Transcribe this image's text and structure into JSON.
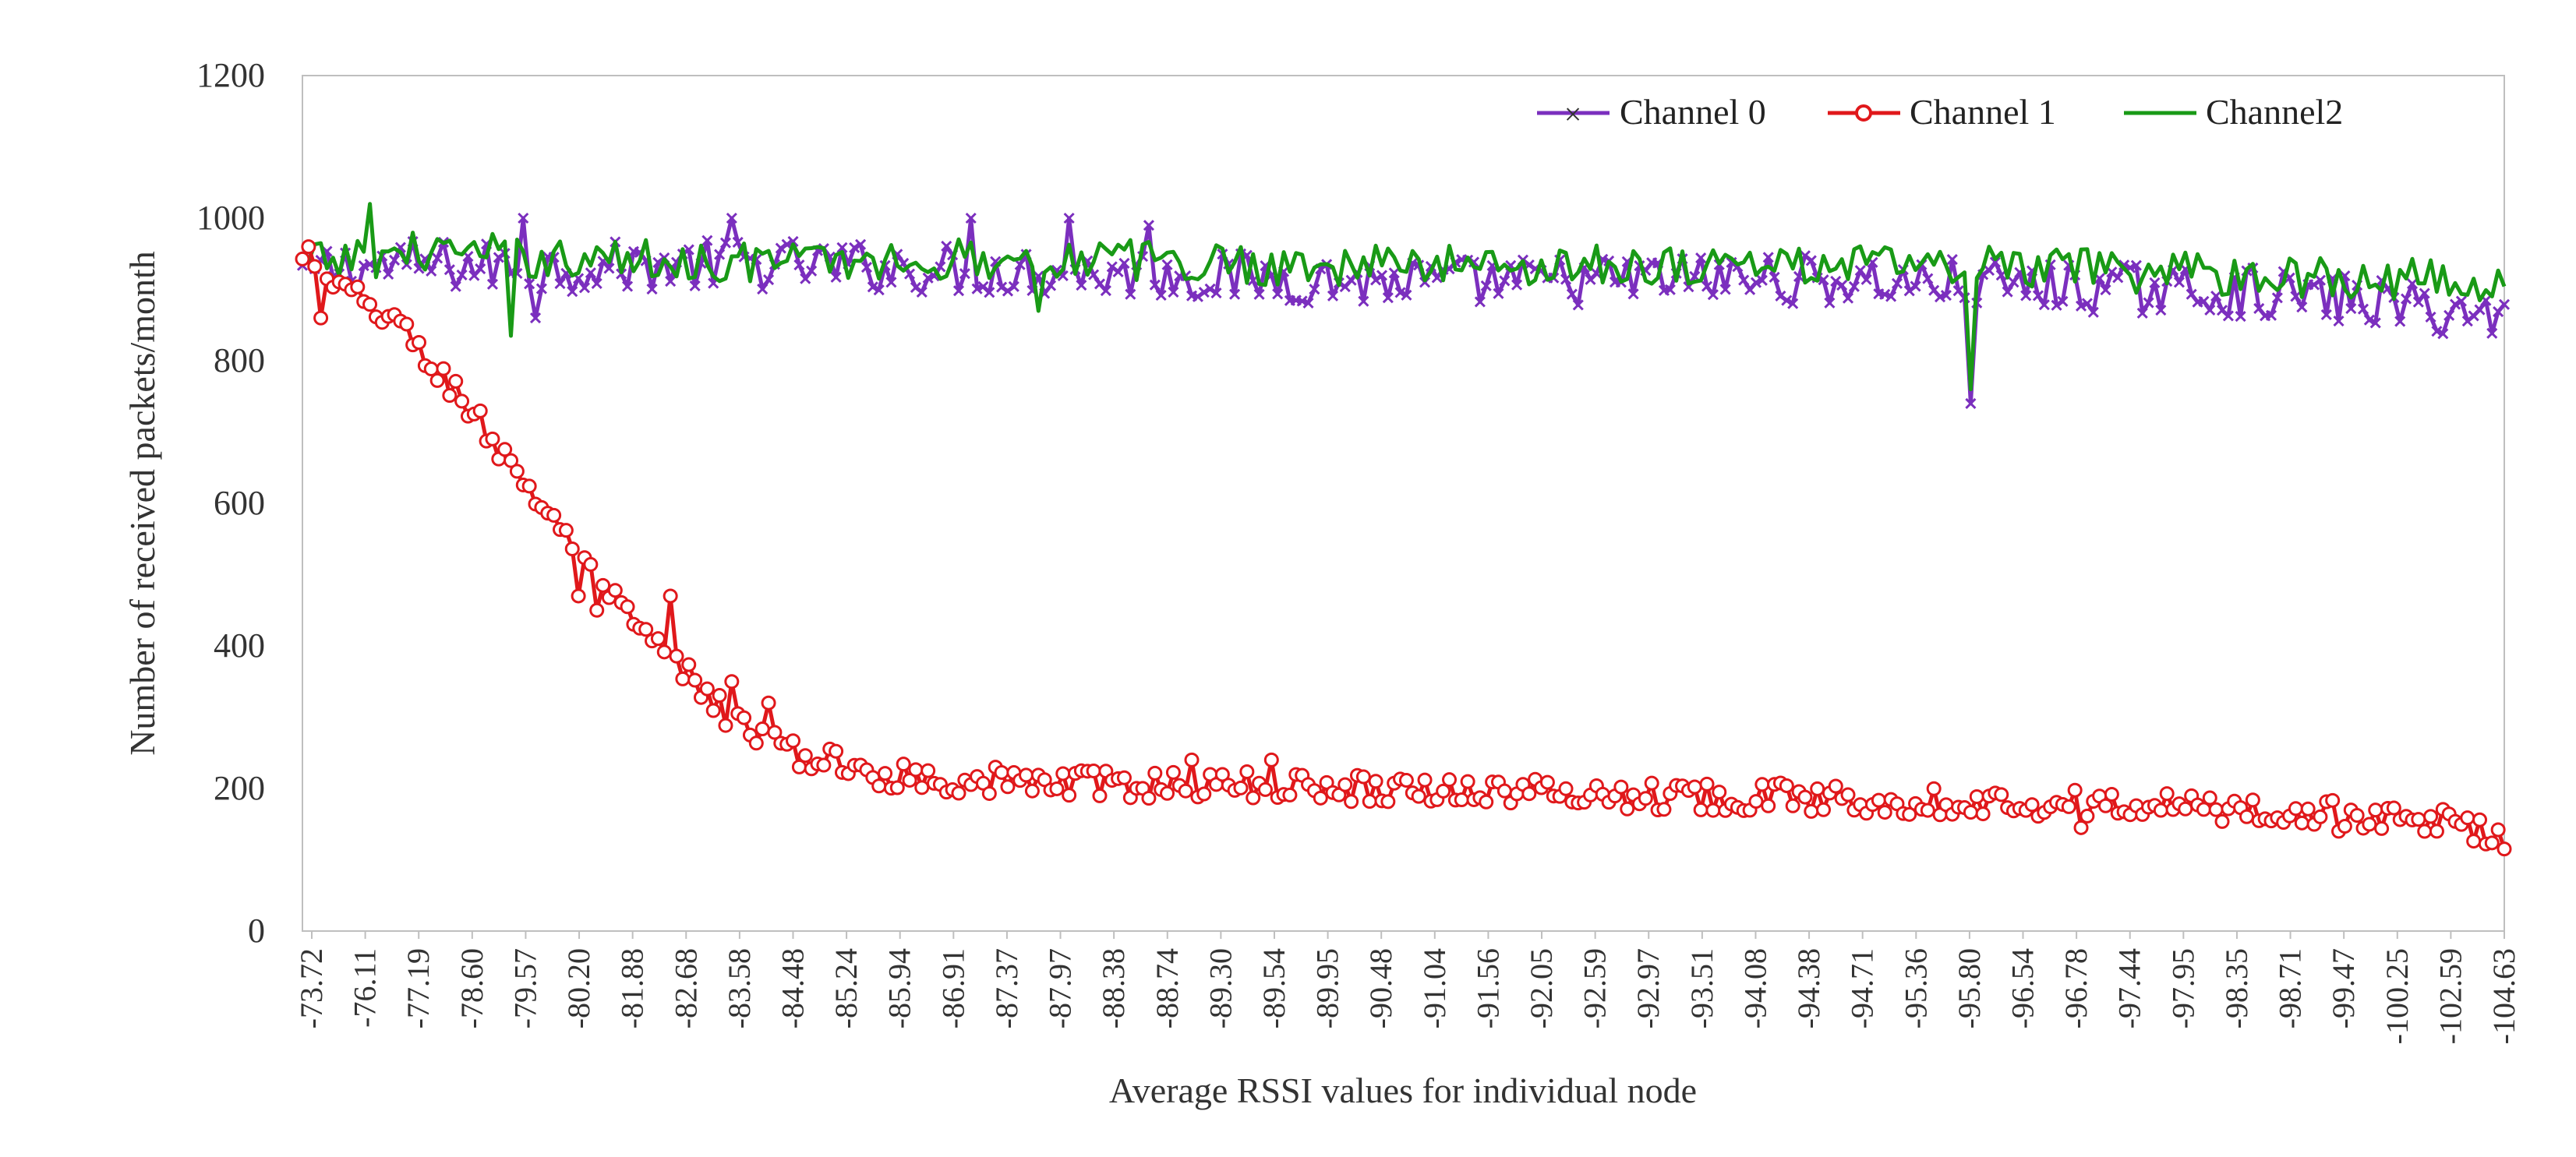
{
  "chart_data": {
    "type": "line",
    "title": "",
    "xlabel": "Average RSSI values for individual node",
    "ylabel": "Number of received packets/month",
    "ylim": [
      0,
      1200
    ],
    "yticks": [
      0,
      200,
      400,
      600,
      800,
      1000,
      1200
    ],
    "grid": false,
    "legend_position": "top-right",
    "point_count": 360,
    "x_tick_labels": [
      "-73.72",
      "-76.11",
      "-77.19",
      "-78.60",
      "-79.57",
      "-80.20",
      "-81.88",
      "-82.68",
      "-83.58",
      "-84.48",
      "-85.24",
      "-85.94",
      "-86.91",
      "-87.37",
      "-87.97",
      "-88.38",
      "-88.74",
      "-89.30",
      "-89.54",
      "-89.95",
      "-90.48",
      "-91.04",
      "-91.56",
      "-92.05",
      "-92.59",
      "-92.97",
      "-93.51",
      "-94.08",
      "-94.38",
      "-94.71",
      "-95.36",
      "-95.80",
      "-96.54",
      "-96.78",
      "-97.44",
      "-97.95",
      "-98.35",
      "-98.71",
      "-99.47",
      "-100.25",
      "-102.59",
      "-104.63"
    ],
    "series": [
      {
        "name": "Channel 0",
        "color": "#7B2FBE",
        "marker": "x",
        "baseline_points": [
          [
            0,
            925
          ],
          [
            5,
            930
          ],
          [
            20,
            935
          ],
          [
            40,
            930
          ],
          [
            60,
            935
          ],
          [
            80,
            935
          ],
          [
            100,
            930
          ],
          [
            120,
            925
          ],
          [
            140,
            920
          ],
          [
            160,
            915
          ],
          [
            180,
            910
          ],
          [
            200,
            910
          ],
          [
            220,
            915
          ],
          [
            240,
            915
          ],
          [
            260,
            910
          ],
          [
            280,
            905
          ],
          [
            300,
            900
          ],
          [
            320,
            895
          ],
          [
            340,
            880
          ],
          [
            359,
            860
          ]
        ],
        "noise_amplitude": 35,
        "spikes": [
          [
            36,
            1000
          ],
          [
            38,
            860
          ],
          [
            70,
            1000
          ],
          [
            109,
            1000
          ],
          [
            125,
            1000
          ],
          [
            138,
            990
          ],
          [
            272,
            740
          ]
        ]
      },
      {
        "name": "Channel 1",
        "color": "#E0181B",
        "marker": "o",
        "baseline_points": [
          [
            0,
            935
          ],
          [
            5,
            905
          ],
          [
            10,
            880
          ],
          [
            15,
            860
          ],
          [
            20,
            800
          ],
          [
            25,
            760
          ],
          [
            30,
            700
          ],
          [
            35,
            640
          ],
          [
            40,
            590
          ],
          [
            45,
            520
          ],
          [
            50,
            470
          ],
          [
            55,
            420
          ],
          [
            60,
            380
          ],
          [
            65,
            340
          ],
          [
            70,
            300
          ],
          [
            75,
            270
          ],
          [
            80,
            250
          ],
          [
            85,
            240
          ],
          [
            90,
            225
          ],
          [
            100,
            215
          ],
          [
            120,
            208
          ],
          [
            140,
            205
          ],
          [
            160,
            203
          ],
          [
            180,
            200
          ],
          [
            200,
            195
          ],
          [
            220,
            190
          ],
          [
            240,
            188
          ],
          [
            260,
            183
          ],
          [
            280,
            180
          ],
          [
            300,
            176
          ],
          [
            320,
            168
          ],
          [
            340,
            160
          ],
          [
            352,
            150
          ],
          [
            359,
            130
          ]
        ],
        "noise_amplitude": 20,
        "spikes": [
          [
            1,
            960
          ],
          [
            3,
            860
          ],
          [
            34,
            660
          ],
          [
            45,
            470
          ],
          [
            48,
            450
          ],
          [
            60,
            470
          ],
          [
            70,
            350
          ],
          [
            76,
            320
          ],
          [
            145,
            240
          ],
          [
            158,
            240
          ],
          [
            290,
            145
          ],
          [
            332,
            140
          ]
        ]
      },
      {
        "name": "Channel2",
        "color": "#199A16",
        "marker": "none",
        "baseline_points": [
          [
            0,
            935
          ],
          [
            10,
            945
          ],
          [
            20,
            955
          ],
          [
            40,
            945
          ],
          [
            60,
            940
          ],
          [
            80,
            940
          ],
          [
            100,
            940
          ],
          [
            120,
            945
          ],
          [
            140,
            940
          ],
          [
            160,
            935
          ],
          [
            180,
            935
          ],
          [
            200,
            935
          ],
          [
            220,
            935
          ],
          [
            240,
            935
          ],
          [
            260,
            935
          ],
          [
            280,
            930
          ],
          [
            300,
            925
          ],
          [
            320,
            920
          ],
          [
            340,
            915
          ],
          [
            359,
            905
          ]
        ],
        "noise_amplitude": 30,
        "spikes": [
          [
            11,
            1020
          ],
          [
            34,
            835
          ],
          [
            120,
            870
          ],
          [
            272,
            760
          ],
          [
            275,
            960
          ]
        ]
      }
    ]
  }
}
